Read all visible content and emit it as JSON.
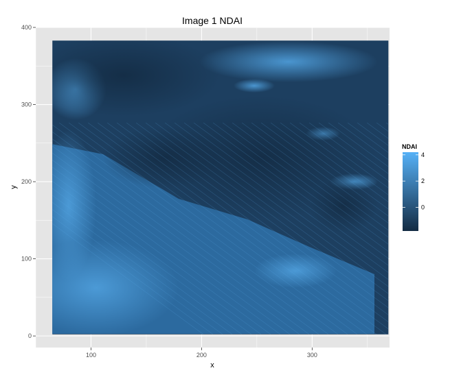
{
  "chart_data": {
    "type": "heatmap",
    "title": "Image 1 NDAI",
    "xlabel": "x",
    "ylabel": "y",
    "xlim": [
      50,
      370
    ],
    "ylim": [
      -15,
      400
    ],
    "x_ticks": [
      100,
      200,
      300
    ],
    "y_ticks": [
      0,
      100,
      200,
      300,
      400
    ],
    "grid": true,
    "data_extent": {
      "x": [
        65,
        369
      ],
      "y": [
        2,
        383
      ]
    },
    "color_scale": {
      "title": "NDAI",
      "min": -1.8,
      "max": 4.2,
      "low_color": "#132b43",
      "high_color": "#56b1f7",
      "ticks": [
        0,
        2,
        4
      ]
    },
    "colors": {
      "panel": "#e5e5e5",
      "gridline": "#ffffff"
    }
  }
}
